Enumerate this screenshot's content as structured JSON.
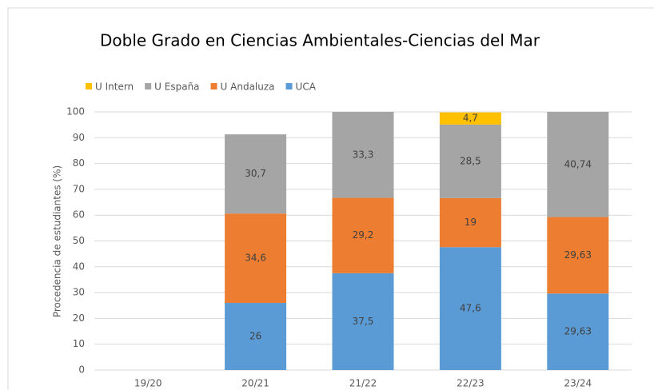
{
  "chart_data": {
    "type": "stacked_bar",
    "title": "Doble Grado en Ciencias Ambientales-Ciencias del Mar",
    "y_label": "Procedencia de estudiantes (%)",
    "categories": [
      "19/20",
      "20/21",
      "21/22",
      "22/23",
      "23/24"
    ],
    "series": [
      {
        "name": "U Intern",
        "color": "#ffc000",
        "values": [
          null,
          null,
          null,
          4.7,
          null
        ],
        "value_labels": [
          null,
          null,
          null,
          "4,7",
          null
        ]
      },
      {
        "name": "U España",
        "color": "#a5a5a5",
        "values": [
          null,
          30.7,
          33.3,
          28.5,
          40.74
        ],
        "value_labels": [
          null,
          "30,7",
          "33,3",
          "28,5",
          "40,74"
        ]
      },
      {
        "name": "U Andaluza",
        "color": "#ed7d31",
        "values": [
          null,
          34.6,
          29.2,
          19,
          29.63
        ],
        "value_labels": [
          null,
          "34,6",
          "29,2",
          "19",
          "29,63"
        ]
      },
      {
        "name": "UCA",
        "color": "#5b9bd5",
        "values": [
          null,
          26,
          37.5,
          47.6,
          29.63
        ],
        "value_labels": [
          null,
          "26",
          "37,5",
          "47,6",
          "29,63"
        ]
      }
    ],
    "ylim": [
      0,
      100
    ],
    "yticks": [
      0,
      10,
      20,
      30,
      40,
      50,
      60,
      70,
      80,
      90,
      100
    ],
    "grid": true,
    "legend": "top-left"
  }
}
